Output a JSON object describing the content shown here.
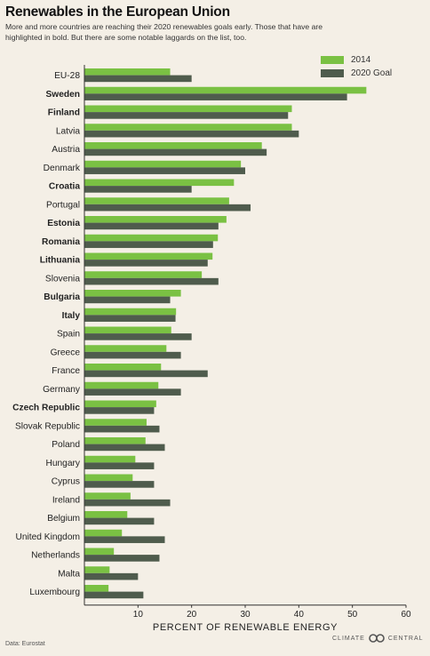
{
  "header": {
    "title": "Renewables in the European Union",
    "subtitle": "More and more countries are reaching their 2020 renewables goals early. Those that have are highlighted in bold. But there are some notable laggards on the list, too."
  },
  "footer": {
    "source": "Data: Eurostat",
    "brand_left": "CLIMATE",
    "brand_right": "CENTRAL"
  },
  "colors": {
    "series_2014": "#7ac143",
    "series_goal": "#4f5c4d"
  },
  "chart_data": {
    "type": "bar",
    "orientation": "horizontal",
    "xlabel": "PERCENT OF RENEWABLE ENERGY",
    "xlim": [
      0,
      60
    ],
    "xticks": [
      10,
      20,
      30,
      40,
      50,
      60
    ],
    "grid": false,
    "legend_position": "top-right",
    "categories": [
      "EU-28",
      "Sweden",
      "Finland",
      "Latvia",
      "Austria",
      "Denmark",
      "Croatia",
      "Portugal",
      "Estonia",
      "Romania",
      "Lithuania",
      "Slovenia",
      "Bulgaria",
      "Italy",
      "Spain",
      "Greece",
      "France",
      "Germany",
      "Czech Republic",
      "Slovak Republic",
      "Poland",
      "Hungary",
      "Cyprus",
      "Ireland",
      "Belgium",
      "United Kingdom",
      "Netherlands",
      "Malta",
      "Luxembourg"
    ],
    "bold": [
      false,
      true,
      true,
      false,
      false,
      false,
      true,
      false,
      true,
      true,
      true,
      false,
      true,
      true,
      false,
      false,
      false,
      false,
      true,
      false,
      false,
      false,
      false,
      false,
      false,
      false,
      false,
      false,
      false
    ],
    "series": [
      {
        "name": "2014",
        "values": [
          16.0,
          52.6,
          38.7,
          38.7,
          33.1,
          29.2,
          27.9,
          27.0,
          26.5,
          24.9,
          23.9,
          21.9,
          18.0,
          17.1,
          16.2,
          15.3,
          14.3,
          13.8,
          13.4,
          11.6,
          11.4,
          9.5,
          9.0,
          8.6,
          8.0,
          7.0,
          5.5,
          4.7,
          4.5
        ]
      },
      {
        "name": "2020 Goal",
        "values": [
          20,
          49,
          38,
          40,
          34,
          30,
          20,
          31,
          25,
          24,
          23,
          25,
          16,
          17,
          20,
          18,
          23,
          18,
          13,
          14,
          15,
          13,
          13,
          16,
          13,
          15,
          14,
          10,
          11
        ]
      }
    ]
  }
}
